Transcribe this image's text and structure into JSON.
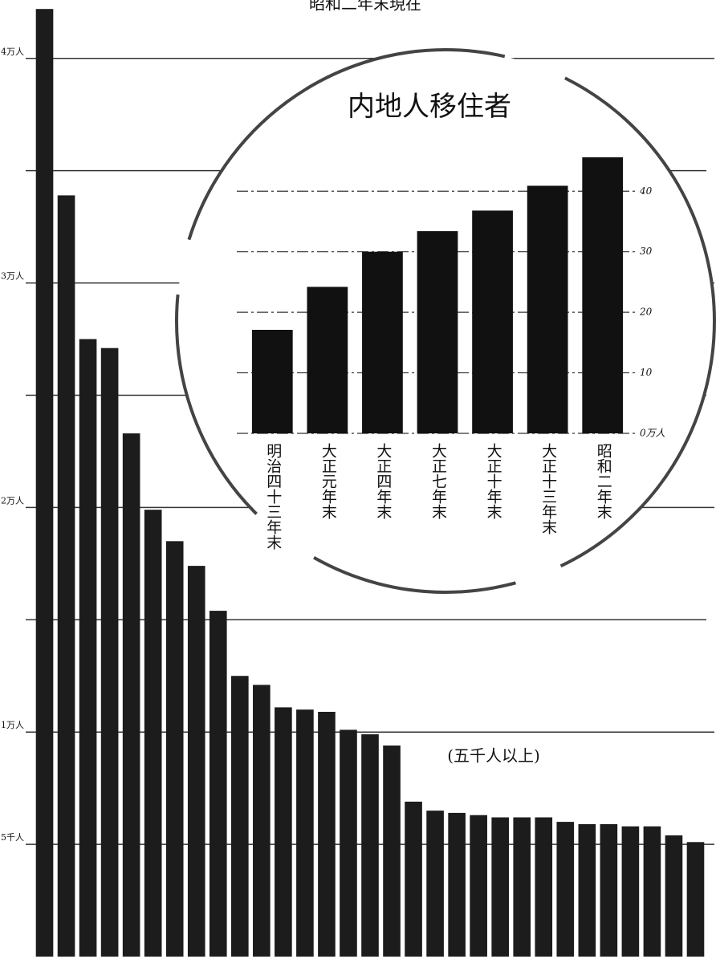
{
  "chart_data": [
    {
      "type": "bar",
      "title": "昭和二年末現在",
      "categories": [
        null,
        null,
        null,
        null,
        null,
        null,
        null,
        null,
        null,
        null,
        null,
        null,
        null,
        null,
        null,
        null,
        null,
        null,
        null,
        null,
        null,
        null,
        null,
        null,
        null,
        null,
        null,
        null,
        null,
        null,
        null
      ],
      "values": [
        4.22,
        3.39,
        2.75,
        2.71,
        2.33,
        1.99,
        1.85,
        1.74,
        1.54,
        1.25,
        1.21,
        1.11,
        1.1,
        1.09,
        1.01,
        0.99,
        0.94,
        0.69,
        0.65,
        0.64,
        0.63,
        0.62,
        0.62,
        0.62,
        0.6,
        0.59,
        0.59,
        0.58,
        0.58,
        0.54,
        0.51
      ],
      "color": "#1c1c1c",
      "ylim": [
        0,
        4.26
      ],
      "yticks": [
        {
          "value": 4,
          "label": "4万人"
        },
        {
          "value": 3,
          "label": "3万人"
        },
        {
          "value": 2,
          "label": "2万人"
        },
        {
          "value": 1,
          "label": "1万人"
        },
        {
          "value": 0.5,
          "label": "5千人"
        }
      ],
      "minor_yticks": [
        1.5,
        2.5,
        3.5
      ],
      "annotation": "(五千人以上)"
    },
    {
      "type": "bar",
      "title": "内地人移住者",
      "categories": [
        "明治四十三年末",
        "大正元年末",
        "大正四年末",
        "大正七年末",
        "大正十年末",
        "大正十三年末",
        "昭和二年末"
      ],
      "values": [
        17.1,
        24.2,
        30.0,
        33.4,
        36.8,
        40.9,
        45.6
      ],
      "color": "#111111",
      "ylim": [
        0,
        46.4
      ],
      "yticks": [
        {
          "value": 0,
          "label": "0万人"
        },
        10,
        20,
        30,
        40
      ]
    }
  ]
}
